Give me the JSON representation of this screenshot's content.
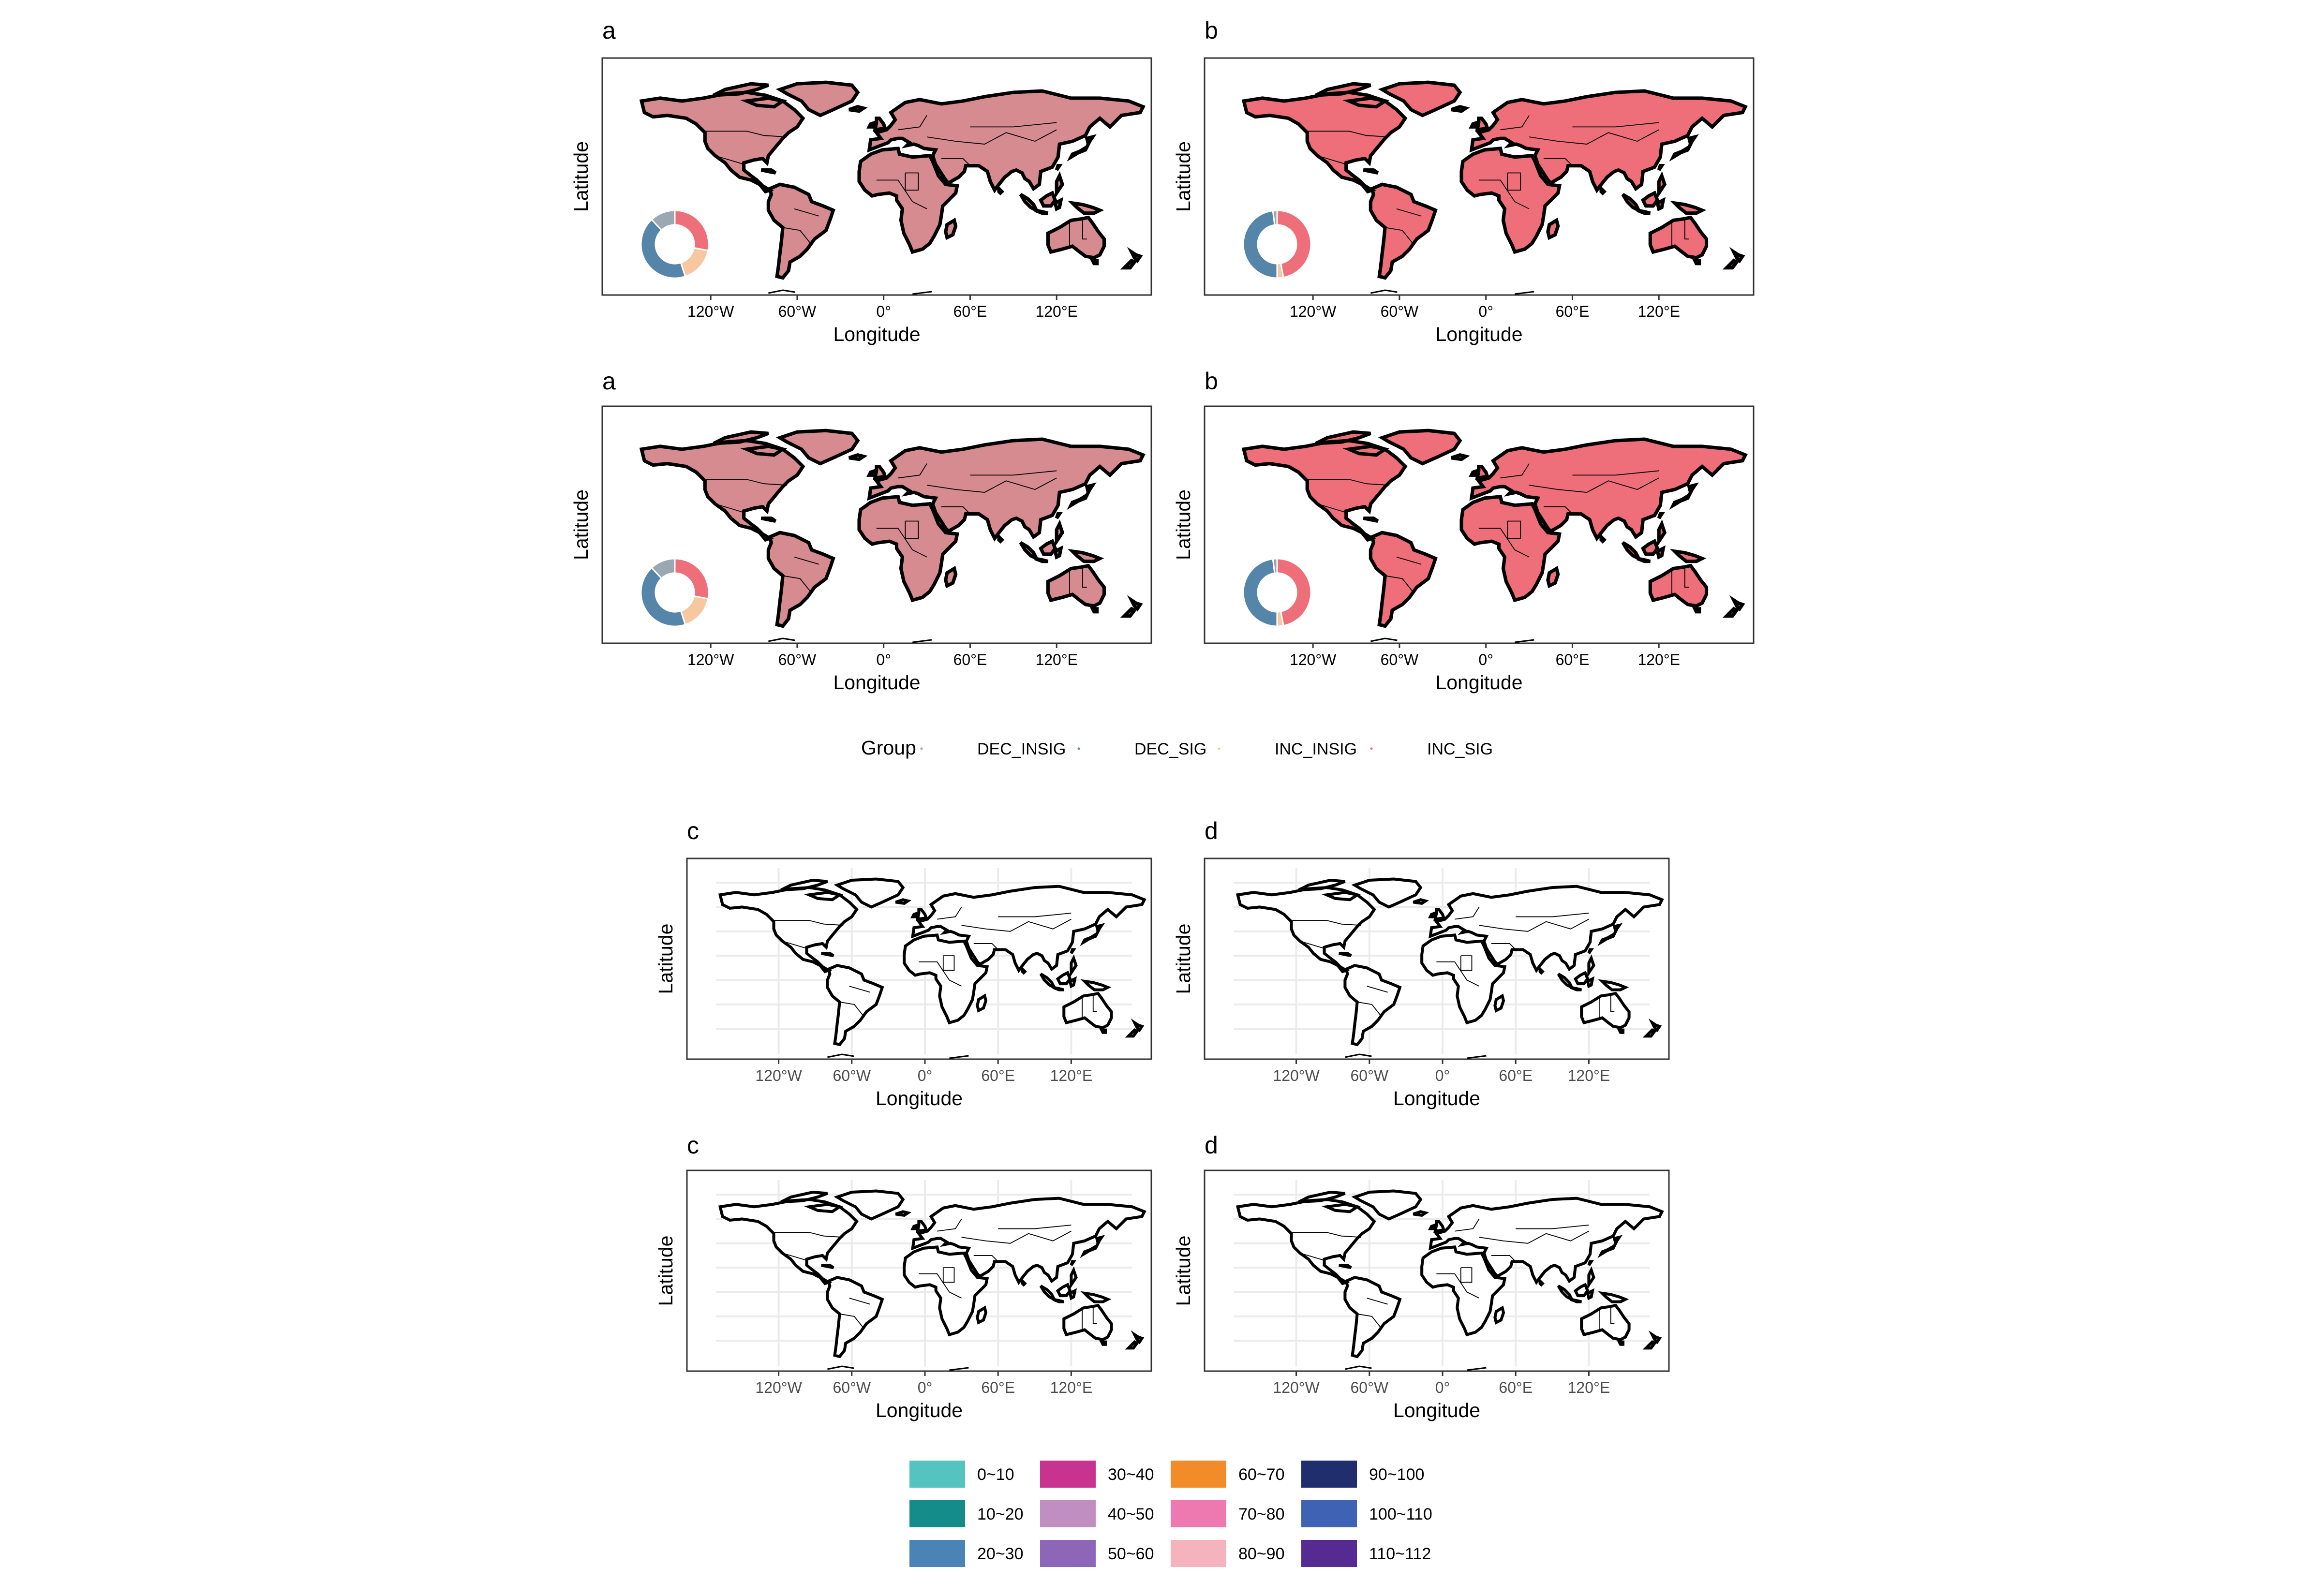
{
  "panels": [
    {
      "id": "a1",
      "label": "a",
      "style": "trend",
      "donut": true,
      "seed": 11,
      "pattern": "fine"
    },
    {
      "id": "b1",
      "label": "b",
      "style": "trend",
      "donut": true,
      "seed": 23,
      "pattern": "block"
    },
    {
      "id": "a2",
      "label": "a",
      "style": "trend",
      "donut": true,
      "seed": 37,
      "pattern": "fine"
    },
    {
      "id": "b2",
      "label": "b",
      "style": "trend",
      "donut": true,
      "seed": 41,
      "pattern": "block"
    },
    {
      "id": "c1",
      "label": "c",
      "style": "length",
      "donut": false,
      "seed": 53,
      "pattern": "fine"
    },
    {
      "id": "d1",
      "label": "d",
      "style": "length",
      "donut": false,
      "seed": 67,
      "pattern": "sparse"
    },
    {
      "id": "c2",
      "label": "c",
      "style": "length",
      "donut": false,
      "seed": 71,
      "pattern": "fine"
    },
    {
      "id": "d2",
      "label": "d",
      "style": "length",
      "donut": false,
      "seed": 83,
      "pattern": "sparse"
    }
  ],
  "axis": {
    "x_title": "Longitude",
    "y_title": "Latitude",
    "x_ticks": [
      "120°W",
      "60°W",
      "0°",
      "60°E",
      "120°E"
    ],
    "x_tick_values": [
      -120,
      -60,
      0,
      60,
      120
    ]
  },
  "donuts": {
    "a1": [
      {
        "group": "INC_SIG",
        "share": 0.28
      },
      {
        "group": "INC_INSIG",
        "share": 0.17
      },
      {
        "group": "DEC_SIG",
        "share": 0.43
      },
      {
        "group": "DEC_INSIG",
        "share": 0.12
      }
    ],
    "b1": [
      {
        "group": "INC_SIG",
        "share": 0.47
      },
      {
        "group": "INC_INSIG",
        "share": 0.03
      },
      {
        "group": "DEC_SIG",
        "share": 0.48
      },
      {
        "group": "DEC_INSIG",
        "share": 0.02
      }
    ],
    "a2": [
      {
        "group": "INC_SIG",
        "share": 0.28
      },
      {
        "group": "INC_INSIG",
        "share": 0.17
      },
      {
        "group": "DEC_SIG",
        "share": 0.43
      },
      {
        "group": "DEC_INSIG",
        "share": 0.12
      }
    ],
    "b2": [
      {
        "group": "INC_SIG",
        "share": 0.47
      },
      {
        "group": "INC_INSIG",
        "share": 0.03
      },
      {
        "group": "DEC_SIG",
        "share": 0.48
      },
      {
        "group": "DEC_INSIG",
        "share": 0.02
      }
    ]
  },
  "group_legend": {
    "title": "Group",
    "items": [
      {
        "label": "DEC_INSIG",
        "color": "#9aa8b3"
      },
      {
        "label": "DEC_SIG",
        "color": "#5585a8"
      },
      {
        "label": "INC_INSIG",
        "color": "#f7c8a0"
      },
      {
        "label": "INC_SIG",
        "color": "#ee6f79"
      }
    ]
  },
  "class_legend": {
    "items": [
      {
        "label": "0~10",
        "color": "#55c3bf"
      },
      {
        "label": "10~20",
        "color": "#138c8a"
      },
      {
        "label": "20~30",
        "color": "#4a83b5"
      },
      {
        "label": "30~40",
        "color": "#c8338f"
      },
      {
        "label": "40~50",
        "color": "#c08ec0"
      },
      {
        "label": "50~60",
        "color": "#8e66b8"
      },
      {
        "label": "60~70",
        "color": "#f28c28"
      },
      {
        "label": "70~80",
        "color": "#ee78b0"
      },
      {
        "label": "80~90",
        "color": "#f4b3bd"
      },
      {
        "label": "90~100",
        "color": "#212e6e"
      },
      {
        "label": "100~110",
        "color": "#3f62b4"
      },
      {
        "label": "110~112",
        "color": "#552a93"
      }
    ]
  }
}
